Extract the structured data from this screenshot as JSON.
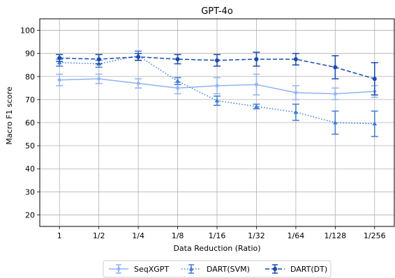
{
  "chart_data": {
    "type": "line",
    "title": "GPT-4o",
    "xlabel": "Data Reduction (Ratio)",
    "ylabel": "Macro F1 score",
    "categories": [
      "1",
      "1/2",
      "1/4",
      "1/8",
      "1/16",
      "1/32",
      "1/64",
      "1/128",
      "1/256"
    ],
    "ylim": [
      15,
      105
    ],
    "yticks": [
      20,
      30,
      40,
      50,
      60,
      70,
      80,
      90,
      100
    ],
    "grid": true,
    "legend_position": "bottom-center",
    "series": [
      {
        "name": "SeqXGPT",
        "color": "#8fb3f5",
        "linestyle": "solid",
        "marker": "diamond",
        "values": [
          78.5,
          79.0,
          77.0,
          75.0,
          76.0,
          76.5,
          73.0,
          72.5,
          73.5
        ],
        "errors": [
          2.5,
          2.0,
          2.0,
          2.5,
          3.5,
          4.5,
          3.0,
          2.5,
          2.5
        ]
      },
      {
        "name": "DART(SVM)",
        "color": "#3a7be0",
        "linestyle": "dotted",
        "marker": "triangle",
        "values": [
          86.0,
          85.5,
          89.0,
          78.0,
          69.5,
          67.0,
          64.5,
          60.0,
          59.5
        ],
        "errors": [
          1.5,
          1.5,
          2.0,
          1.5,
          2.0,
          1.0,
          3.5,
          5.0,
          5.5
        ]
      },
      {
        "name": "DART(DT)",
        "color": "#1449b8",
        "linestyle": "dashed",
        "marker": "circle",
        "values": [
          88.0,
          87.5,
          88.5,
          87.5,
          87.0,
          87.5,
          87.5,
          84.0,
          79.0
        ],
        "errors": [
          1.5,
          2.0,
          1.5,
          2.0,
          2.5,
          3.0,
          2.5,
          5.0,
          7.0
        ]
      }
    ]
  }
}
